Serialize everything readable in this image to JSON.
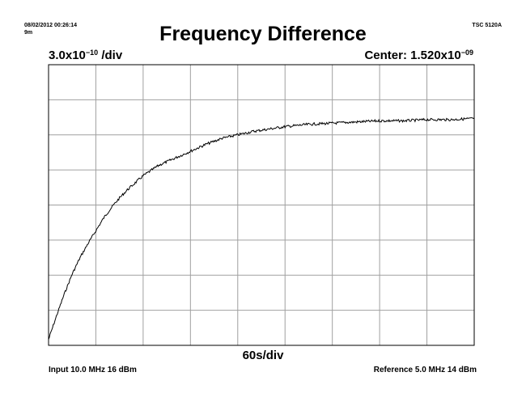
{
  "header": {
    "timestamp": "08/02/2012 00:26:14",
    "duration": "9m",
    "instrument": "TSC 5120A",
    "title": "Frequency Difference"
  },
  "scale": {
    "y_prefix": "3.0x10",
    "y_exp": "−10",
    "y_suffix": " /div",
    "center_prefix": "Center: 1.520x10",
    "center_exp": "−09",
    "x_label": "60s/div"
  },
  "footer": {
    "input": "Input 10.0 MHz 16 dBm",
    "reference": "Reference 5.0 MHz 14 dBm"
  },
  "colors": {
    "trace": "#000000",
    "grid": "#a0a0a0",
    "frame": "#000000"
  },
  "chart_data": {
    "type": "line",
    "grid": true,
    "x_divisions": 9,
    "y_divisions": 8,
    "x_per_div_s": 60,
    "y_per_div": 3e-10,
    "y_center": 1.52e-09,
    "series": [
      {
        "x": [
          0,
          10,
          20,
          30,
          40,
          50,
          60,
          70,
          80,
          90,
          100,
          120,
          140,
          160,
          180,
          200,
          220,
          240,
          260,
          280,
          300,
          330,
          360,
          390,
          420,
          450,
          480,
          510,
          540
        ],
        "values": [
          3.7e-10,
          5.7e-10,
          7.6e-10,
          9.3e-10,
          1.07e-09,
          1.19e-09,
          1.3e-09,
          1.41e-09,
          1.5e-09,
          1.58e-09,
          1.65e-09,
          1.77e-09,
          1.86e-09,
          1.92e-09,
          1.98e-09,
          2.04e-09,
          2.09e-09,
          2.12e-09,
          2.15e-09,
          2.17e-09,
          2.19e-09,
          2.21e-09,
          2.22e-09,
          2.23e-09,
          2.24e-09,
          2.24e-09,
          2.25e-09,
          2.25e-09,
          2.26e-09
        ]
      }
    ]
  }
}
